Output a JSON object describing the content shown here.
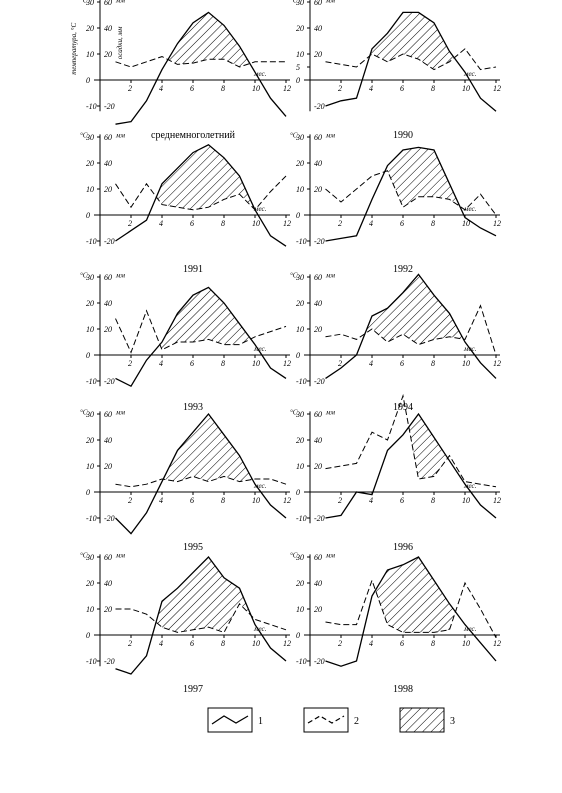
{
  "figure": {
    "legend": [
      {
        "id": "1",
        "label": "1"
      },
      {
        "id": "2",
        "label": "2"
      },
      {
        "id": "3",
        "label": "3"
      }
    ],
    "axis_text": {
      "temp_unit": "°C",
      "precip_unit": "мм",
      "month_unit": "мес.",
      "temp_caption": "температура, °С",
      "precip_caption": "осадки, мм"
    }
  },
  "chart_data": [
    {
      "type": "line",
      "title": "среднемноголетний",
      "x": [
        1,
        2,
        3,
        4,
        5,
        6,
        7,
        8,
        9,
        10,
        11,
        12
      ],
      "series": [
        {
          "name": "1",
          "values": [
            -17,
            -16,
            -8,
            4,
            14,
            22,
            26,
            21,
            13,
            3,
            -7,
            -14
          ]
        },
        {
          "name": "2",
          "values": [
            14,
            10,
            14,
            18,
            12,
            13,
            16,
            16,
            10,
            14,
            14,
            14
          ]
        }
      ],
      "xlim": [
        0,
        12
      ],
      "ylim_temp": [
        -10,
        30
      ],
      "ylim_precip": [
        -20,
        60
      ],
      "xticks": [
        2,
        4,
        6,
        8,
        10,
        12
      ],
      "yticks_temp": [
        -10,
        0,
        10,
        20,
        30
      ],
      "yticks_precip": [
        -20,
        20,
        40,
        60
      ]
    },
    {
      "type": "line",
      "title": "1990",
      "x": [
        1,
        2,
        3,
        4,
        5,
        6,
        7,
        8,
        9,
        10,
        11,
        12
      ],
      "series": [
        {
          "name": "1",
          "values": [
            -10,
            -8,
            -7,
            12,
            18,
            26,
            26,
            22,
            11,
            3,
            -7,
            -12
          ]
        },
        {
          "name": "2",
          "values": [
            14,
            12,
            10,
            20,
            14,
            20,
            16,
            8,
            14,
            24,
            8,
            10
          ]
        }
      ],
      "xlim": [
        0,
        12
      ],
      "ylim_temp": [
        -10,
        30
      ],
      "ylim_precip": [
        -20,
        60
      ],
      "xticks": [
        2,
        4,
        6,
        8,
        10,
        12
      ],
      "yticks_temp": [
        0,
        5,
        10,
        20,
        30
      ],
      "yticks_precip": [
        -20,
        20,
        40,
        60
      ]
    },
    {
      "type": "line",
      "title": "1991",
      "x": [
        1,
        2,
        3,
        4,
        5,
        6,
        7,
        8,
        9,
        10,
        11,
        12
      ],
      "series": [
        {
          "name": "1",
          "values": [
            -10,
            -6,
            -2,
            12,
            18,
            24,
            27,
            22,
            15,
            2,
            -8,
            -12
          ]
        },
        {
          "name": "2",
          "values": [
            24,
            6,
            24,
            8,
            6,
            4,
            6,
            12,
            16,
            4,
            18,
            30
          ]
        }
      ],
      "xlim": [
        0,
        12
      ],
      "ylim_temp": [
        -10,
        30
      ],
      "ylim_precip": [
        -20,
        60
      ],
      "xticks": [
        2,
        4,
        6,
        8,
        10,
        12
      ],
      "yticks_temp": [
        -10,
        0,
        10,
        20,
        30
      ],
      "yticks_precip": [
        -20,
        20,
        40,
        60
      ]
    },
    {
      "type": "line",
      "title": "1992",
      "x": [
        1,
        2,
        3,
        4,
        5,
        6,
        7,
        8,
        9,
        10,
        11,
        12
      ],
      "series": [
        {
          "name": "1",
          "values": [
            -10,
            -9,
            -8,
            6,
            19,
            25,
            26,
            25,
            12,
            -1,
            -5,
            -8
          ]
        },
        {
          "name": "2",
          "values": [
            20,
            10,
            20,
            30,
            34,
            6,
            14,
            14,
            12,
            4,
            16,
            0
          ]
        }
      ],
      "xlim": [
        0,
        12
      ],
      "ylim_temp": [
        -10,
        30
      ],
      "ylim_precip": [
        -20,
        60
      ],
      "xticks": [
        2,
        4,
        6,
        8,
        10,
        12
      ],
      "yticks_temp": [
        -10,
        0,
        10,
        20,
        30
      ],
      "yticks_precip": [
        -20,
        20,
        40,
        60
      ]
    },
    {
      "type": "line",
      "title": "1993",
      "x": [
        1,
        2,
        3,
        4,
        5,
        6,
        7,
        8,
        9,
        10,
        11,
        12
      ],
      "series": [
        {
          "name": "1",
          "values": [
            -9,
            -12,
            -2,
            5,
            16,
            23,
            26,
            20,
            12,
            4,
            -5,
            -9
          ]
        },
        {
          "name": "2",
          "values": [
            28,
            2,
            34,
            4,
            10,
            10,
            12,
            8,
            8,
            14,
            18,
            22
          ]
        }
      ],
      "xlim": [
        0,
        12
      ],
      "ylim_temp": [
        -10,
        30
      ],
      "ylim_precip": [
        -20,
        60
      ],
      "xticks": [
        2,
        4,
        6,
        8,
        10,
        12
      ],
      "yticks_temp": [
        -10,
        0,
        10,
        20,
        30
      ],
      "yticks_precip": [
        -20,
        20,
        40,
        60
      ]
    },
    {
      "type": "line",
      "title": "1994",
      "x": [
        1,
        2,
        3,
        4,
        5,
        6,
        7,
        8,
        9,
        10,
        11,
        12
      ],
      "series": [
        {
          "name": "1",
          "values": [
            -9,
            -5,
            0,
            15,
            18,
            24,
            31,
            23,
            16,
            5,
            -3,
            -9
          ]
        },
        {
          "name": "2",
          "values": [
            14,
            16,
            12,
            20,
            10,
            16,
            8,
            12,
            14,
            12,
            38,
            0
          ]
        }
      ],
      "xlim": [
        0,
        12
      ],
      "ylim_temp": [
        -10,
        30
      ],
      "ylim_precip": [
        -20,
        60
      ],
      "xticks": [
        2,
        4,
        6,
        8,
        10,
        12
      ],
      "yticks_temp": [
        -10,
        0,
        10,
        20,
        30
      ],
      "yticks_precip": [
        -20,
        20,
        40,
        60
      ]
    },
    {
      "type": "line",
      "title": "1995",
      "x": [
        1,
        2,
        3,
        4,
        5,
        6,
        7,
        8,
        9,
        10,
        11,
        12
      ],
      "series": [
        {
          "name": "1",
          "values": [
            -10,
            -16,
            -8,
            4,
            16,
            23,
            30,
            22,
            14,
            3,
            -5,
            -10
          ]
        },
        {
          "name": "2",
          "values": [
            6,
            4,
            6,
            10,
            8,
            12,
            8,
            12,
            8,
            10,
            10,
            6
          ]
        }
      ],
      "xlim": [
        0,
        12
      ],
      "ylim_temp": [
        -10,
        30
      ],
      "ylim_precip": [
        -20,
        60
      ],
      "xticks": [
        2,
        4,
        6,
        8,
        10,
        12
      ],
      "yticks_temp": [
        -10,
        0,
        10,
        20,
        30
      ],
      "yticks_precip": [
        -20,
        20,
        40,
        60
      ]
    },
    {
      "type": "line",
      "title": "1996",
      "x": [
        1,
        2,
        3,
        4,
        5,
        6,
        7,
        8,
        9,
        10,
        11,
        12
      ],
      "series": [
        {
          "name": "1",
          "values": [
            -10,
            -9,
            0,
            -1,
            16,
            22,
            30,
            21,
            12,
            3,
            -5,
            -10
          ]
        },
        {
          "name": "2",
          "values": [
            18,
            20,
            22,
            46,
            40,
            74,
            10,
            12,
            28,
            8,
            6,
            4
          ]
        }
      ],
      "xlim": [
        0,
        12
      ],
      "ylim_temp": [
        -10,
        30
      ],
      "ylim_precip": [
        -20,
        60
      ],
      "xticks": [
        2,
        4,
        6,
        8,
        10,
        12
      ],
      "yticks_temp": [
        -10,
        0,
        10,
        20,
        30
      ],
      "yticks_precip": [
        -20,
        20,
        40,
        60
      ]
    },
    {
      "type": "line",
      "title": "1997",
      "x": [
        1,
        2,
        3,
        4,
        5,
        6,
        7,
        8,
        9,
        10,
        11,
        12
      ],
      "series": [
        {
          "name": "1",
          "values": [
            -13,
            -15,
            -8,
            13,
            18,
            24,
            30,
            22,
            18,
            4,
            -5,
            -10
          ]
        },
        {
          "name": "2",
          "values": [
            20,
            20,
            16,
            6,
            2,
            4,
            6,
            2,
            24,
            12,
            8,
            4
          ]
        }
      ],
      "xlim": [
        0,
        12
      ],
      "ylim_temp": [
        -10,
        30
      ],
      "ylim_precip": [
        -20,
        60
      ],
      "xticks": [
        2,
        4,
        6,
        8,
        10,
        12
      ],
      "yticks_temp": [
        -10,
        0,
        10,
        20,
        30
      ],
      "yticks_precip": [
        -20,
        20,
        40,
        60
      ]
    },
    {
      "type": "line",
      "title": "1998",
      "x": [
        1,
        2,
        3,
        4,
        5,
        6,
        7,
        8,
        9,
        10,
        11,
        12
      ],
      "series": [
        {
          "name": "1",
          "values": [
            -10,
            -12,
            -10,
            15,
            25,
            27,
            30,
            21,
            12,
            4,
            -3,
            -10
          ]
        },
        {
          "name": "2",
          "values": [
            10,
            8,
            8,
            42,
            8,
            2,
            2,
            2,
            4,
            40,
            20,
            -2
          ]
        }
      ],
      "xlim": [
        0,
        12
      ],
      "ylim_temp": [
        -10,
        30
      ],
      "ylim_precip": [
        -20,
        60
      ],
      "xticks": [
        2,
        4,
        6,
        8,
        10,
        12
      ],
      "yticks_temp": [
        -10,
        0,
        10,
        20,
        30
      ],
      "yticks_precip": [
        -20,
        20,
        40,
        60
      ]
    }
  ]
}
